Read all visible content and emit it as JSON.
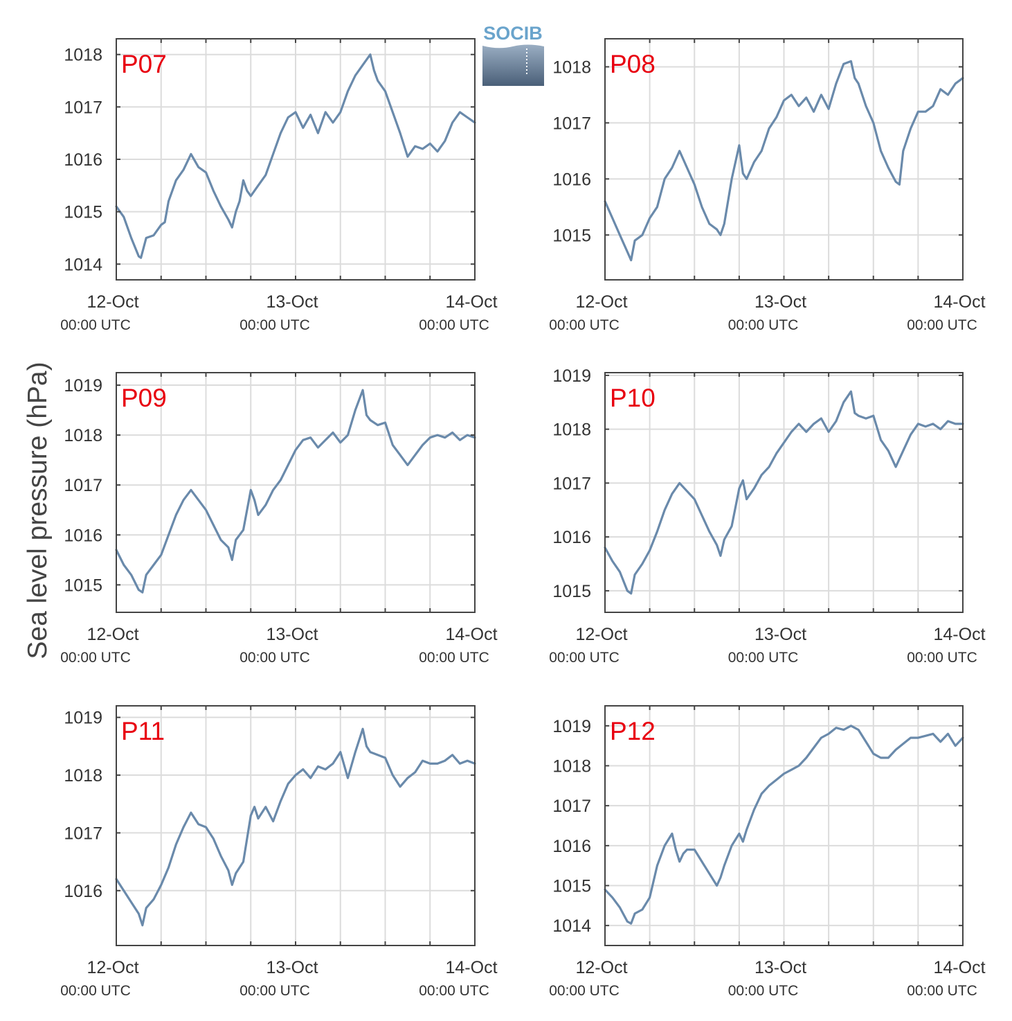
{
  "figure": {
    "ylabel": "Sea level pressure (hPa)",
    "logo_text": "SOCIB",
    "line_color": "#6a8aab",
    "label_color": "#e8000f"
  },
  "chart_data": [
    {
      "type": "line",
      "title": "P07",
      "x_ticks": [
        {
          "label": "12-Oct",
          "sublabel": "00:00 UTC",
          "hours": 0
        },
        {
          "label": "13-Oct",
          "sublabel": "00:00 UTC",
          "hours": 24
        },
        {
          "label": "14-Oct",
          "sublabel": "00:00 UTC",
          "hours": 48
        }
      ],
      "xlim": [
        0,
        48
      ],
      "ylim": [
        1013.7,
        1018.3
      ],
      "yticks": [
        1014,
        1015,
        1016,
        1017,
        1018
      ],
      "grid": true,
      "series": [
        {
          "x": [
            0,
            1,
            2,
            3,
            3.3,
            4,
            5,
            6,
            6.5,
            7,
            8,
            9,
            10,
            11,
            12,
            13,
            14,
            15,
            15.5,
            16,
            16.5,
            17,
            17.5,
            18,
            19,
            20,
            21,
            22,
            23,
            24,
            25,
            26,
            27,
            28,
            29,
            30,
            31,
            32,
            33,
            34,
            34.5,
            35,
            36,
            37,
            38,
            39,
            40,
            41,
            42,
            43,
            44,
            45,
            46,
            47,
            48
          ],
          "y": [
            1015.1,
            1014.9,
            1014.5,
            1014.15,
            1014.12,
            1014.5,
            1014.55,
            1014.75,
            1014.8,
            1015.2,
            1015.6,
            1015.8,
            1016.1,
            1015.85,
            1015.75,
            1015.4,
            1015.1,
            1014.85,
            1014.7,
            1015.0,
            1015.2,
            1015.6,
            1015.4,
            1015.3,
            1015.5,
            1015.7,
            1016.1,
            1016.5,
            1016.8,
            1016.9,
            1016.6,
            1016.85,
            1016.5,
            1016.9,
            1016.7,
            1016.9,
            1017.3,
            1017.6,
            1017.8,
            1018.0,
            1017.7,
            1017.5,
            1017.3,
            1016.9,
            1016.5,
            1016.05,
            1016.25,
            1016.2,
            1016.3,
            1016.15,
            1016.35,
            1016.7,
            1016.9,
            1016.8,
            1016.7
          ]
        }
      ]
    },
    {
      "type": "line",
      "title": "P08",
      "x_ticks": [
        {
          "label": "12-Oct",
          "sublabel": "00:00 UTC",
          "hours": 0
        },
        {
          "label": "13-Oct",
          "sublabel": "00:00 UTC",
          "hours": 24
        },
        {
          "label": "14-Oct",
          "sublabel": "00:00 UTC",
          "hours": 48
        }
      ],
      "xlim": [
        0,
        48
      ],
      "ylim": [
        1014.2,
        1018.5
      ],
      "yticks": [
        1015,
        1016,
        1017,
        1018
      ],
      "grid": true,
      "series": [
        {
          "x": [
            0,
            1,
            2,
            3,
            3.5,
            4,
            5,
            6,
            7,
            8,
            9,
            10,
            11,
            12,
            13,
            14,
            15,
            15.5,
            16,
            17,
            18,
            18.5,
            19,
            20,
            21,
            22,
            23,
            24,
            25,
            26,
            27,
            28,
            29,
            30,
            31,
            32,
            33,
            33.5,
            34,
            35,
            36,
            37,
            38,
            39,
            39.5,
            40,
            41,
            42,
            43,
            44,
            45,
            46,
            47,
            48
          ],
          "y": [
            1015.6,
            1015.3,
            1015.0,
            1014.7,
            1014.55,
            1014.9,
            1015.0,
            1015.3,
            1015.5,
            1016.0,
            1016.2,
            1016.5,
            1016.2,
            1015.9,
            1015.5,
            1015.2,
            1015.1,
            1015.0,
            1015.2,
            1016.0,
            1016.6,
            1016.1,
            1016.0,
            1016.3,
            1016.5,
            1016.9,
            1017.1,
            1017.4,
            1017.5,
            1017.3,
            1017.45,
            1017.2,
            1017.5,
            1017.25,
            1017.7,
            1018.05,
            1018.1,
            1017.8,
            1017.7,
            1017.3,
            1017.0,
            1016.5,
            1016.2,
            1015.95,
            1015.9,
            1016.5,
            1016.9,
            1017.2,
            1017.2,
            1017.3,
            1017.6,
            1017.5,
            1017.7,
            1017.8
          ]
        }
      ]
    },
    {
      "type": "line",
      "title": "P09",
      "x_ticks": [
        {
          "label": "12-Oct",
          "sublabel": "00:00 UTC",
          "hours": 0
        },
        {
          "label": "13-Oct",
          "sublabel": "00:00 UTC",
          "hours": 24
        },
        {
          "label": "14-Oct",
          "sublabel": "00:00 UTC",
          "hours": 48
        }
      ],
      "xlim": [
        0,
        48
      ],
      "ylim": [
        1014.45,
        1019.25
      ],
      "yticks": [
        1015,
        1016,
        1017,
        1018,
        1019
      ],
      "grid": true,
      "series": [
        {
          "x": [
            0,
            1,
            2,
            3,
            3.5,
            4,
            5,
            6,
            7,
            8,
            9,
            10,
            11,
            12,
            13,
            14,
            15,
            15.5,
            16,
            17,
            18,
            18.5,
            19,
            20,
            21,
            22,
            23,
            24,
            25,
            26,
            27,
            28,
            29,
            30,
            31,
            32,
            33,
            33.5,
            34,
            35,
            36,
            37,
            38,
            39,
            40,
            41,
            42,
            43,
            44,
            45,
            46,
            47,
            48
          ],
          "y": [
            1015.7,
            1015.4,
            1015.2,
            1014.9,
            1014.85,
            1015.2,
            1015.4,
            1015.6,
            1016.0,
            1016.4,
            1016.7,
            1016.9,
            1016.7,
            1016.5,
            1016.2,
            1015.9,
            1015.75,
            1015.5,
            1015.9,
            1016.1,
            1016.9,
            1016.7,
            1016.4,
            1016.6,
            1016.9,
            1017.1,
            1017.4,
            1017.7,
            1017.9,
            1017.95,
            1017.75,
            1017.9,
            1018.05,
            1017.85,
            1018.0,
            1018.5,
            1018.9,
            1018.4,
            1018.3,
            1018.2,
            1018.25,
            1017.8,
            1017.6,
            1017.4,
            1017.6,
            1017.8,
            1017.95,
            1018.0,
            1017.95,
            1018.05,
            1017.9,
            1018.0,
            1017.95
          ]
        }
      ]
    },
    {
      "type": "line",
      "title": "P10",
      "x_ticks": [
        {
          "label": "12-Oct",
          "sublabel": "00:00 UTC",
          "hours": 0
        },
        {
          "label": "13-Oct",
          "sublabel": "00:00 UTC",
          "hours": 24
        },
        {
          "label": "14-Oct",
          "sublabel": "00:00 UTC",
          "hours": 48
        }
      ],
      "xlim": [
        0,
        48
      ],
      "ylim": [
        1014.6,
        1019.05
      ],
      "yticks": [
        1015,
        1016,
        1017,
        1018,
        1019
      ],
      "grid": true,
      "series": [
        {
          "x": [
            0,
            1,
            2,
            3,
            3.5,
            4,
            5,
            6,
            7,
            8,
            9,
            10,
            11,
            12,
            13,
            14,
            15,
            15.5,
            16,
            17,
            18,
            18.5,
            19,
            20,
            21,
            22,
            23,
            24,
            25,
            26,
            27,
            28,
            29,
            30,
            31,
            32,
            33,
            33.5,
            34,
            35,
            36,
            37,
            38,
            39,
            40,
            41,
            42,
            43,
            44,
            45,
            46,
            47,
            48
          ],
          "y": [
            1015.8,
            1015.55,
            1015.35,
            1015.0,
            1014.95,
            1015.3,
            1015.5,
            1015.75,
            1016.1,
            1016.5,
            1016.8,
            1017.0,
            1016.85,
            1016.7,
            1016.4,
            1016.1,
            1015.85,
            1015.65,
            1015.95,
            1016.2,
            1016.9,
            1017.05,
            1016.7,
            1016.9,
            1017.15,
            1017.3,
            1017.55,
            1017.75,
            1017.95,
            1018.1,
            1017.95,
            1018.1,
            1018.2,
            1017.95,
            1018.15,
            1018.5,
            1018.7,
            1018.3,
            1018.25,
            1018.2,
            1018.25,
            1017.8,
            1017.6,
            1017.3,
            1017.6,
            1017.9,
            1018.1,
            1018.05,
            1018.1,
            1018.0,
            1018.15,
            1018.1,
            1018.1
          ]
        }
      ]
    },
    {
      "type": "line",
      "title": "P11",
      "x_ticks": [
        {
          "label": "12-Oct",
          "sublabel": "00:00 UTC",
          "hours": 0
        },
        {
          "label": "13-Oct",
          "sublabel": "00:00 UTC",
          "hours": 24
        },
        {
          "label": "14-Oct",
          "sublabel": "00:00 UTC",
          "hours": 48
        }
      ],
      "xlim": [
        0,
        48
      ],
      "ylim": [
        1015.05,
        1019.2
      ],
      "yticks": [
        1016,
        1017,
        1018,
        1019
      ],
      "grid": true,
      "series": [
        {
          "x": [
            0,
            1,
            2,
            3,
            3.5,
            4,
            5,
            6,
            7,
            8,
            9,
            10,
            11,
            12,
            13,
            14,
            15,
            15.5,
            16,
            17,
            18,
            18.5,
            19,
            20,
            21,
            22,
            23,
            24,
            25,
            26,
            27,
            28,
            29,
            30,
            31,
            32,
            33,
            33.5,
            34,
            35,
            36,
            37,
            38,
            39,
            40,
            41,
            42,
            43,
            44,
            45,
            46,
            47,
            48
          ],
          "y": [
            1016.2,
            1016.0,
            1015.8,
            1015.6,
            1015.4,
            1015.7,
            1015.85,
            1016.1,
            1016.4,
            1016.8,
            1017.1,
            1017.35,
            1017.15,
            1017.1,
            1016.9,
            1016.6,
            1016.35,
            1016.1,
            1016.3,
            1016.5,
            1017.3,
            1017.45,
            1017.25,
            1017.45,
            1017.2,
            1017.55,
            1017.85,
            1018.0,
            1018.1,
            1017.95,
            1018.15,
            1018.1,
            1018.2,
            1018.4,
            1017.95,
            1018.4,
            1018.8,
            1018.5,
            1018.4,
            1018.35,
            1018.3,
            1018.0,
            1017.8,
            1017.95,
            1018.05,
            1018.25,
            1018.2,
            1018.2,
            1018.25,
            1018.35,
            1018.2,
            1018.25,
            1018.2
          ]
        }
      ]
    },
    {
      "type": "line",
      "title": "P12",
      "x_ticks": [
        {
          "label": "12-Oct",
          "sublabel": "00:00 UTC",
          "hours": 0
        },
        {
          "label": "13-Oct",
          "sublabel": "00:00 UTC",
          "hours": 24
        },
        {
          "label": "14-Oct",
          "sublabel": "00:00 UTC",
          "hours": 48
        }
      ],
      "xlim": [
        0,
        48
      ],
      "ylim": [
        1013.5,
        1019.5
      ],
      "yticks": [
        1014,
        1015,
        1016,
        1017,
        1018,
        1019
      ],
      "grid": true,
      "series": [
        {
          "x": [
            0,
            1,
            2,
            3,
            3.5,
            4,
            5,
            6,
            7,
            8,
            9,
            9.5,
            10,
            10.5,
            11,
            12,
            13,
            14,
            15,
            15.5,
            16,
            17,
            18,
            18.5,
            19,
            20,
            21,
            22,
            23,
            24,
            25,
            26,
            27,
            28,
            29,
            30,
            31,
            32,
            33,
            34,
            35,
            36,
            37,
            38,
            39,
            40,
            41,
            42,
            43,
            44,
            45,
            46,
            47,
            48
          ],
          "y": [
            1014.9,
            1014.7,
            1014.45,
            1014.1,
            1014.05,
            1014.3,
            1014.4,
            1014.7,
            1015.5,
            1016.0,
            1016.3,
            1015.9,
            1015.6,
            1015.8,
            1015.9,
            1015.9,
            1015.6,
            1015.3,
            1015.0,
            1015.2,
            1015.5,
            1016.0,
            1016.3,
            1016.1,
            1016.4,
            1016.9,
            1017.3,
            1017.5,
            1017.65,
            1017.8,
            1017.9,
            1018.0,
            1018.2,
            1018.45,
            1018.7,
            1018.8,
            1018.95,
            1018.9,
            1019.0,
            1018.9,
            1018.6,
            1018.3,
            1018.2,
            1018.2,
            1018.4,
            1018.55,
            1018.7,
            1018.7,
            1018.75,
            1018.8,
            1018.6,
            1018.8,
            1018.5,
            1018.7
          ]
        }
      ]
    }
  ]
}
